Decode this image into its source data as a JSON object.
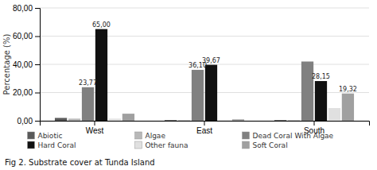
{
  "chart_data": {
    "type": "bar",
    "title": "Fig 2. Substrate cover at Tunda Island",
    "y_label": "Percentage (%)",
    "categories": [
      "West",
      "East",
      "South"
    ],
    "series": [
      {
        "name": "Abiotic",
        "color": "#5a5a5a",
        "values": [
          2.0,
          0.5,
          0.5
        ]
      },
      {
        "name": "Algae",
        "color": "#b8b8b8",
        "values": [
          1.5,
          0.5,
          0.5
        ]
      },
      {
        "name": "Dead Coral With Algae",
        "color": "#808080",
        "values": [
          23.77,
          36.1,
          42.0
        ],
        "value_labels": [
          "23,77",
          "36,10",
          null
        ]
      },
      {
        "name": "Hard Coral",
        "color": "#111111",
        "values": [
          65.0,
          39.67,
          28.15
        ],
        "value_labels": [
          "65,00",
          "39,67",
          "28,15"
        ]
      },
      {
        "name": "Other fauna",
        "color": "#e0e0e0",
        "values": [
          1.5,
          0.5,
          9.0
        ]
      },
      {
        "name": "Soft Coral",
        "color": "#a0a0a0",
        "values": [
          5.0,
          1.0,
          19.32
        ],
        "value_labels": [
          null,
          null,
          "19,32"
        ]
      }
    ],
    "ylim": [
      0,
      80
    ],
    "yticks": [
      {
        "value": 0,
        "label": "0,00"
      },
      {
        "value": 20,
        "label": "20,00"
      },
      {
        "value": 40,
        "label": "40,00"
      },
      {
        "value": 60,
        "label": "60,00"
      },
      {
        "value": 80,
        "label": "80,00"
      }
    ],
    "grid": true,
    "legend": "bottom"
  }
}
